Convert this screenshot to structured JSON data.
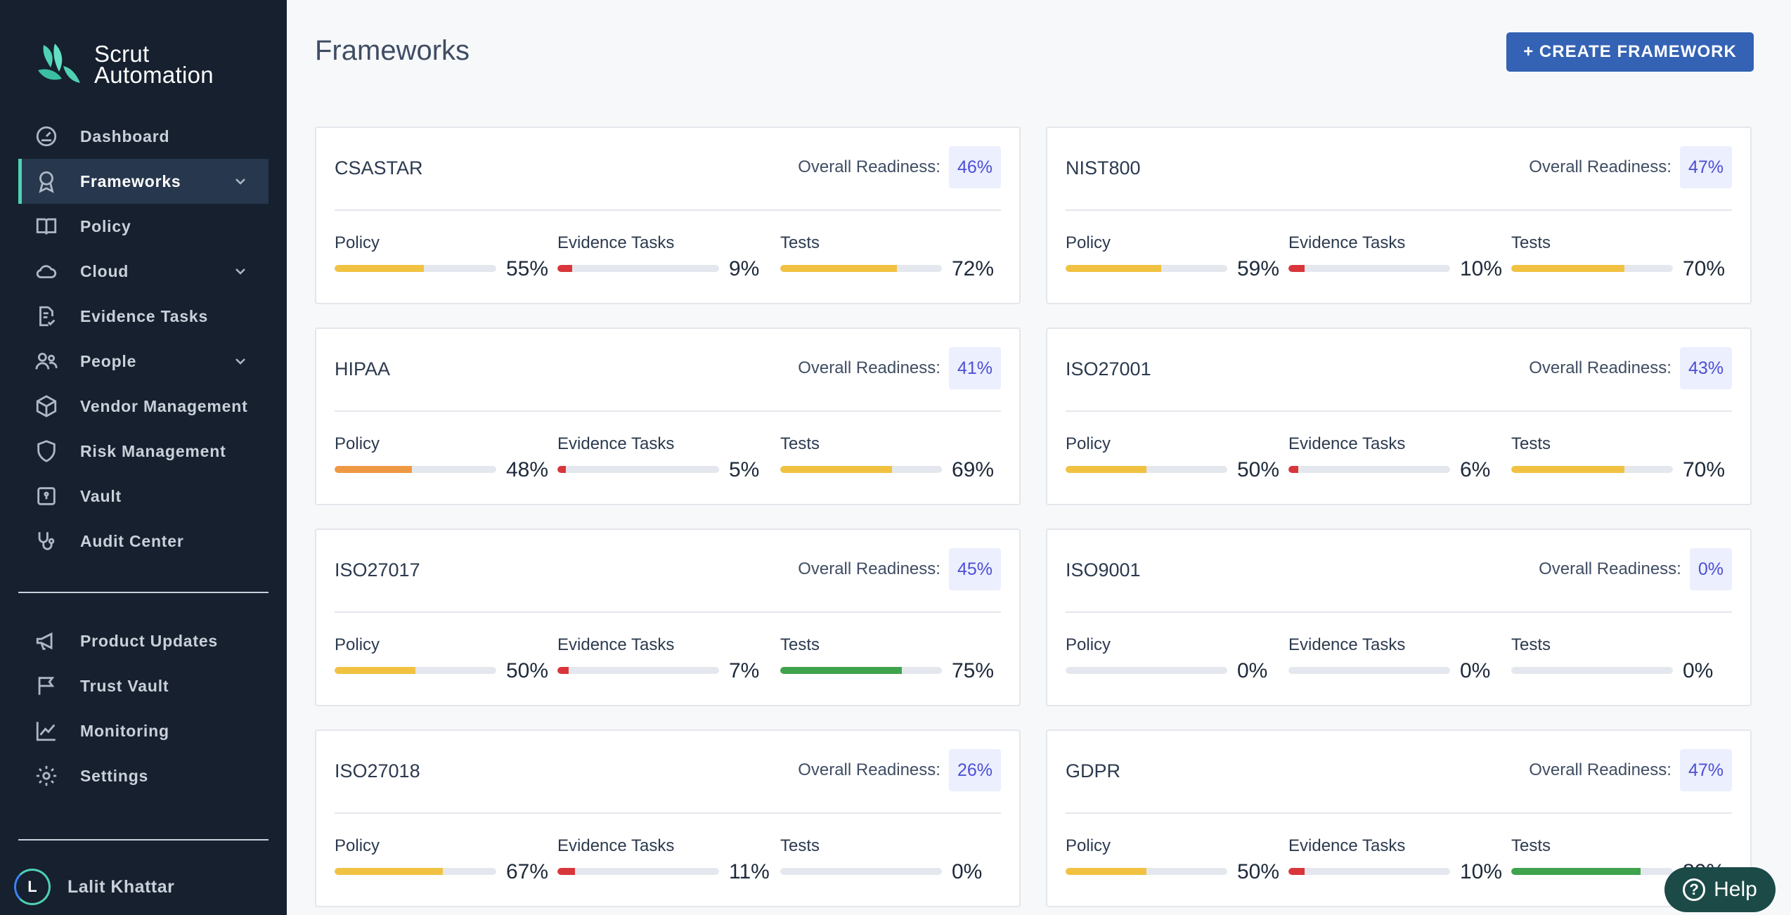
{
  "app": {
    "brand_line1": "Scrut",
    "brand_line2": "Automation"
  },
  "sidebar": {
    "items": [
      {
        "label": "Dashboard",
        "icon": "dashboard-icon",
        "has_chevron": false,
        "active": false
      },
      {
        "label": "Frameworks",
        "icon": "award-icon",
        "has_chevron": true,
        "active": true
      },
      {
        "label": "Policy",
        "icon": "book-icon",
        "has_chevron": false,
        "active": false
      },
      {
        "label": "Cloud",
        "icon": "cloud-icon",
        "has_chevron": true,
        "active": false
      },
      {
        "label": "Evidence Tasks",
        "icon": "file-check-icon",
        "has_chevron": false,
        "active": false
      },
      {
        "label": "People",
        "icon": "people-icon",
        "has_chevron": true,
        "active": false
      },
      {
        "label": "Vendor Management",
        "icon": "package-icon",
        "has_chevron": false,
        "active": false
      },
      {
        "label": "Risk Management",
        "icon": "shield-icon",
        "has_chevron": false,
        "active": false
      },
      {
        "label": "Vault",
        "icon": "vault-icon",
        "has_chevron": false,
        "active": false
      },
      {
        "label": "Audit Center",
        "icon": "stethoscope-icon",
        "has_chevron": false,
        "active": false
      }
    ],
    "secondary_items": [
      {
        "label": "Product Updates",
        "icon": "megaphone-icon"
      },
      {
        "label": "Trust Vault",
        "icon": "flag-icon"
      },
      {
        "label": "Monitoring",
        "icon": "line-chart-icon"
      },
      {
        "label": "Settings",
        "icon": "gear-icon"
      }
    ],
    "user": {
      "initial": "L",
      "name": "Lalit Khattar"
    }
  },
  "main": {
    "title": "Frameworks",
    "create_button": "+ CREATE FRAMEWORK",
    "readiness_label": "Overall Readiness:",
    "metric_labels": {
      "policy": "Policy",
      "evidence": "Evidence Tasks",
      "tests": "Tests"
    },
    "colors": {
      "yellow": "#f1c242",
      "orange": "#ef9844",
      "red": "#d9363b",
      "green": "#3fa34d",
      "track": "#e4e8ee"
    },
    "frameworks": [
      {
        "name": "CSASTAR",
        "readiness": "46%",
        "policy": {
          "value": "55%",
          "fill": 0.55,
          "color": "yellow"
        },
        "evidence": {
          "value": "9%",
          "fill": 0.09,
          "color": "red"
        },
        "tests": {
          "value": "72%",
          "fill": 0.72,
          "color": "yellow"
        }
      },
      {
        "name": "NIST800",
        "readiness": "47%",
        "policy": {
          "value": "59%",
          "fill": 0.59,
          "color": "yellow"
        },
        "evidence": {
          "value": "10%",
          "fill": 0.1,
          "color": "red"
        },
        "tests": {
          "value": "70%",
          "fill": 0.7,
          "color": "yellow"
        }
      },
      {
        "name": "HIPAA",
        "readiness": "41%",
        "policy": {
          "value": "48%",
          "fill": 0.48,
          "color": "orange"
        },
        "evidence": {
          "value": "5%",
          "fill": 0.05,
          "color": "red"
        },
        "tests": {
          "value": "69%",
          "fill": 0.69,
          "color": "yellow"
        }
      },
      {
        "name": "ISO27001",
        "readiness": "43%",
        "policy": {
          "value": "50%",
          "fill": 0.5,
          "color": "yellow"
        },
        "evidence": {
          "value": "6%",
          "fill": 0.06,
          "color": "red"
        },
        "tests": {
          "value": "70%",
          "fill": 0.7,
          "color": "yellow"
        }
      },
      {
        "name": "ISO27017",
        "readiness": "45%",
        "policy": {
          "value": "50%",
          "fill": 0.5,
          "color": "yellow"
        },
        "evidence": {
          "value": "7%",
          "fill": 0.07,
          "color": "red"
        },
        "tests": {
          "value": "75%",
          "fill": 0.75,
          "color": "green"
        }
      },
      {
        "name": "ISO9001",
        "readiness": "0%",
        "policy": {
          "value": "0%",
          "fill": 0,
          "color": "yellow"
        },
        "evidence": {
          "value": "0%",
          "fill": 0,
          "color": "red"
        },
        "tests": {
          "value": "0%",
          "fill": 0,
          "color": "yellow"
        }
      },
      {
        "name": "ISO27018",
        "readiness": "26%",
        "policy": {
          "value": "67%",
          "fill": 0.67,
          "color": "yellow"
        },
        "evidence": {
          "value": "11%",
          "fill": 0.11,
          "color": "red"
        },
        "tests": {
          "value": "0%",
          "fill": 0,
          "color": "yellow"
        }
      },
      {
        "name": "GDPR",
        "readiness": "47%",
        "policy": {
          "value": "50%",
          "fill": 0.5,
          "color": "yellow"
        },
        "evidence": {
          "value": "10%",
          "fill": 0.1,
          "color": "red"
        },
        "tests": {
          "value": "80%",
          "fill": 0.8,
          "color": "green"
        }
      }
    ]
  },
  "help": {
    "label": "Help"
  }
}
